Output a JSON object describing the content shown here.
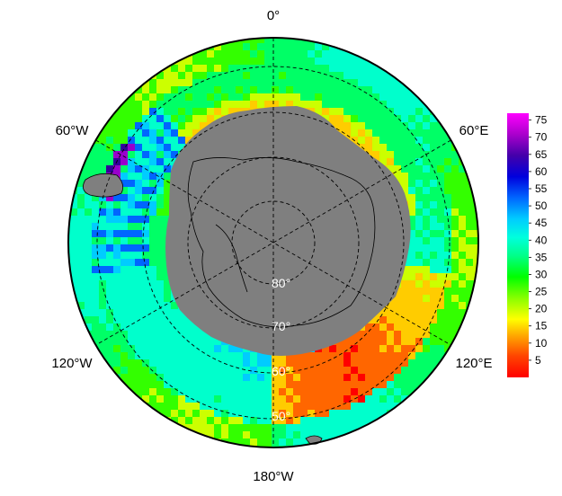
{
  "map": {
    "projection": "south-polar-stereographic",
    "longitude_labels": {
      "top": "0°",
      "upper_left": "60°W",
      "upper_right": "60°E",
      "lower_left": "120°W",
      "lower_right": "120°E",
      "bottom": "180°W"
    },
    "latitude_labels": [
      "80°",
      "70°",
      "60°",
      "50°"
    ],
    "land_color": "#7f7f7f",
    "graticule_style": "dashed"
  },
  "colorbar": {
    "ticks": [
      "75",
      "70",
      "65",
      "60",
      "55",
      "50",
      "45",
      "40",
      "35",
      "30",
      "25",
      "20",
      "15",
      "10",
      "5"
    ],
    "min": 0,
    "max": 77,
    "colors": [
      "#ff0000",
      "#ff6600",
      "#ffcc00",
      "#ccff00",
      "#33ff00",
      "#00ff66",
      "#00ffcc",
      "#00ccff",
      "#0066ff",
      "#0000cc",
      "#330099",
      "#9900cc",
      "#ff00ff"
    ]
  }
}
